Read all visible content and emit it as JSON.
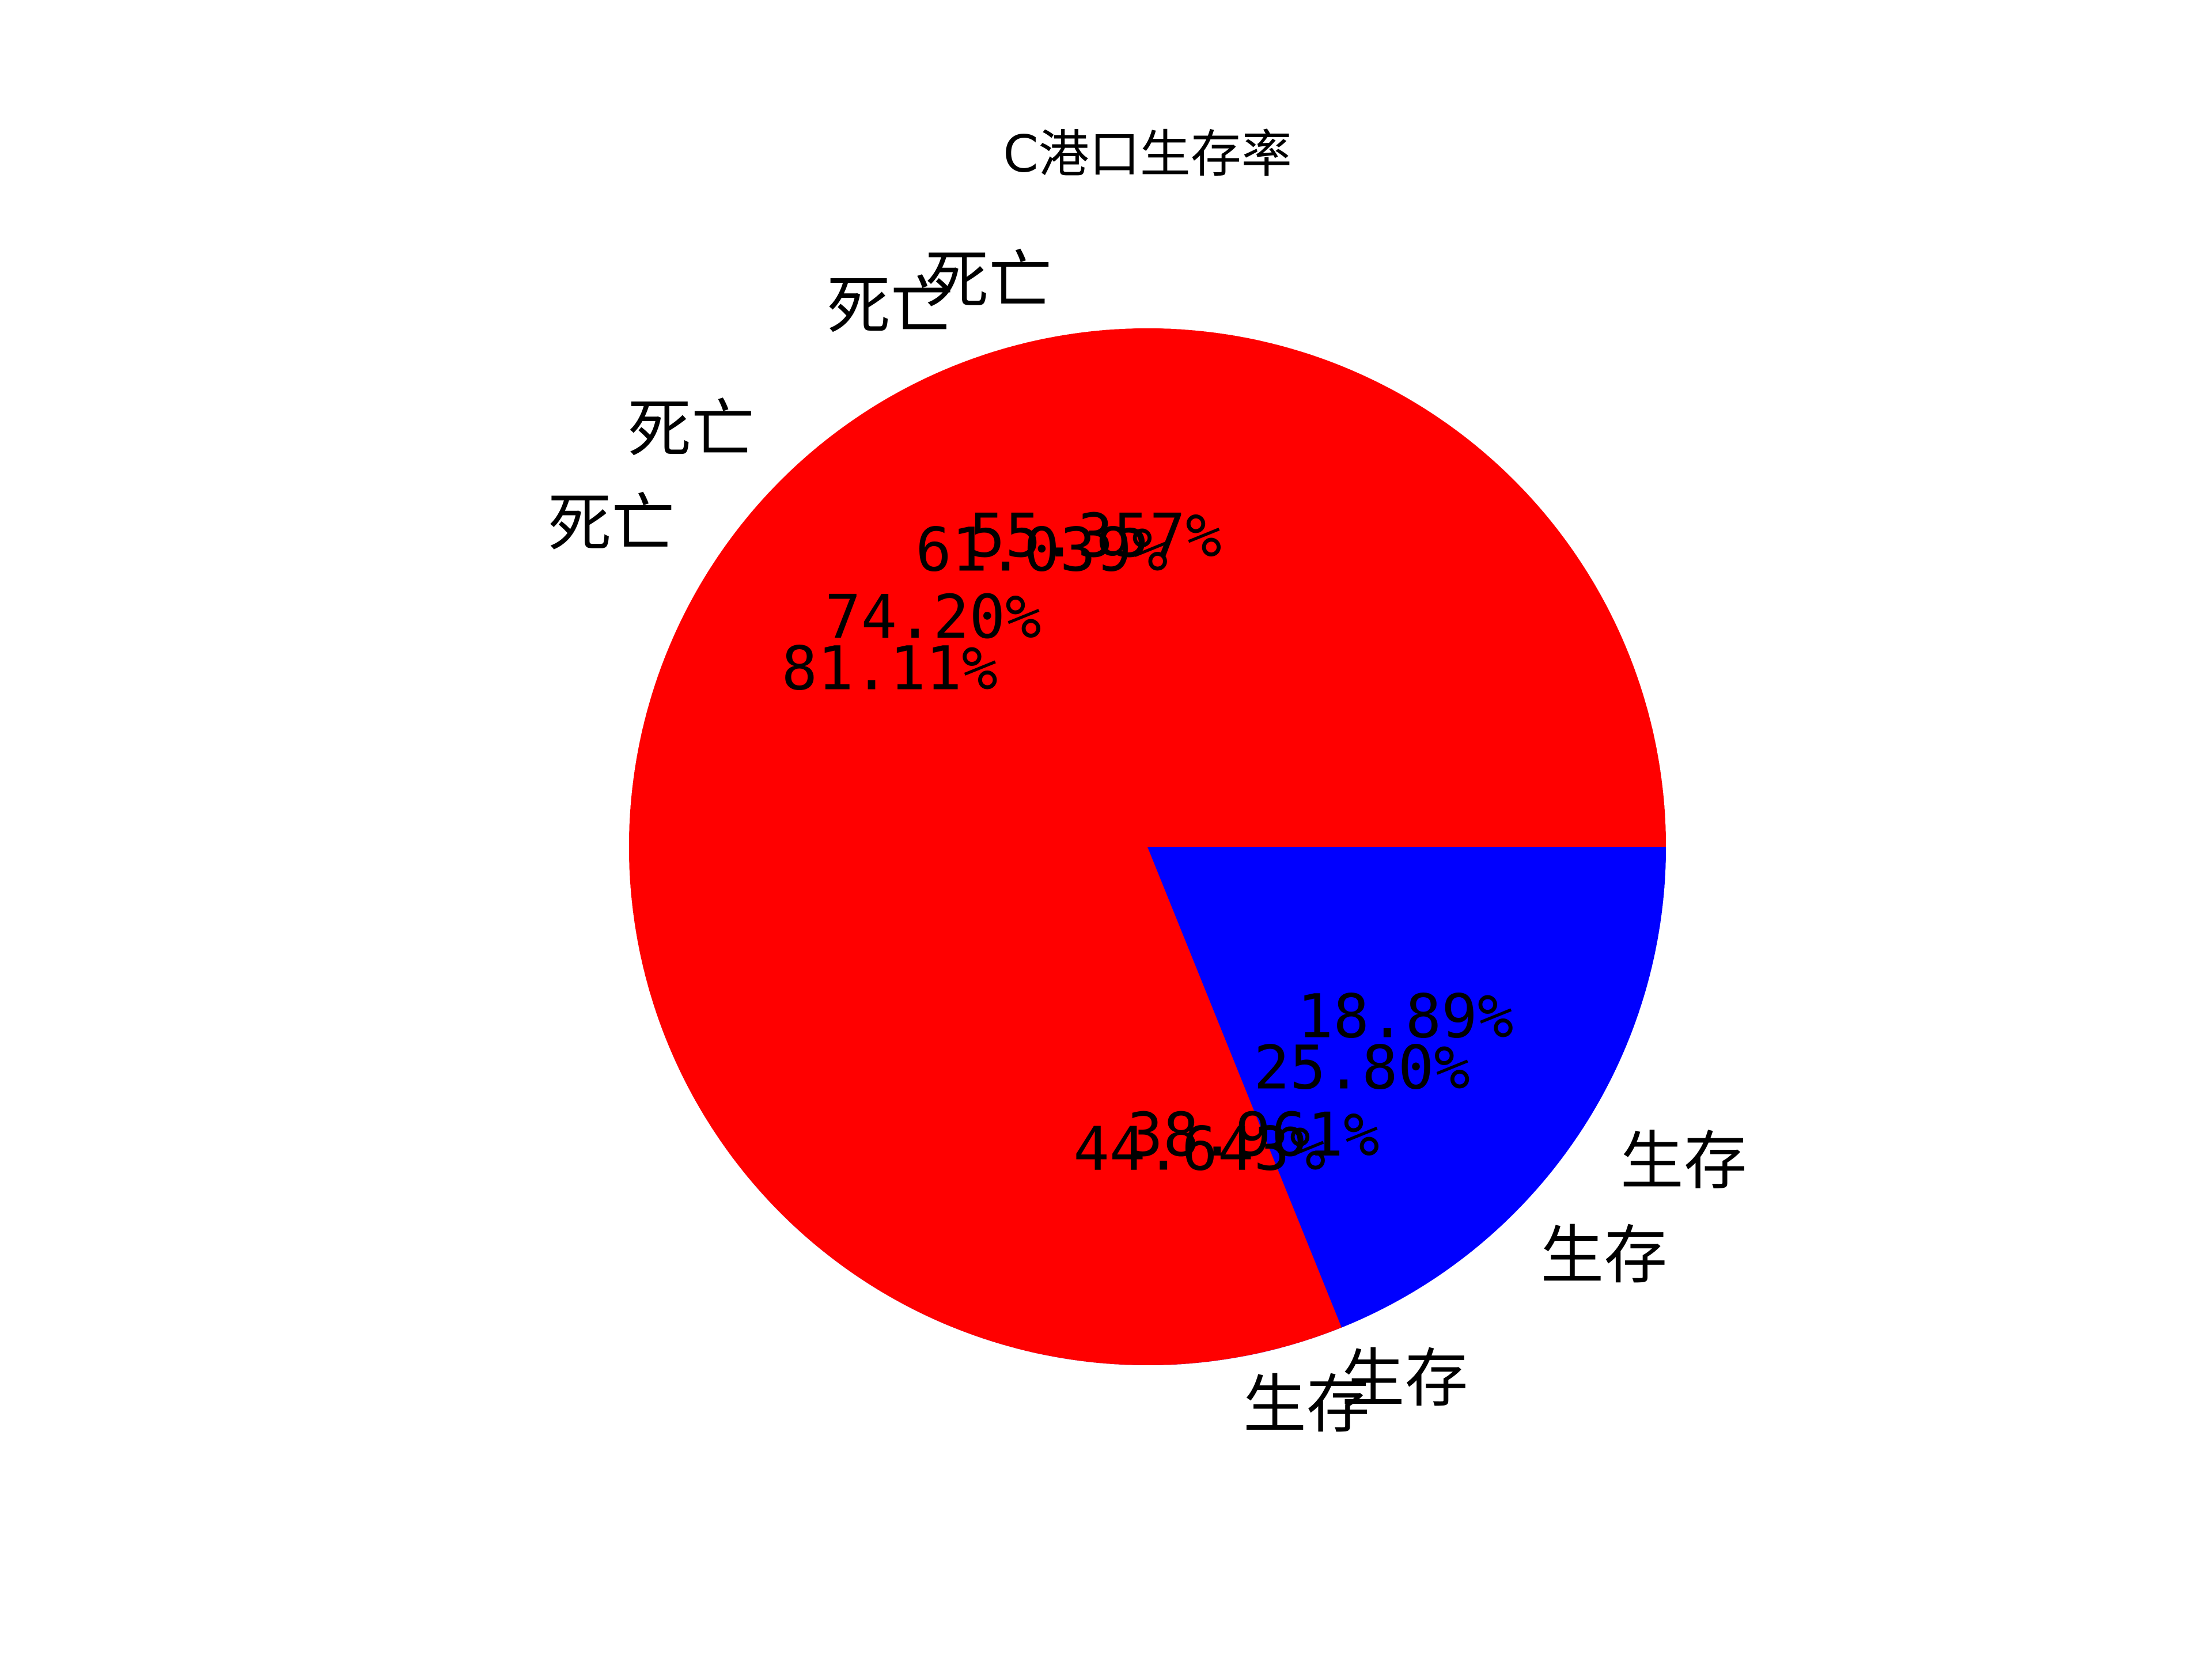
{
  "chart_data": {
    "type": "pie",
    "title": "C港口生存率",
    "colors": [
      "#ff0000",
      "#0000ff"
    ],
    "layers": [
      {
        "slices": [
          {
            "label": "死亡",
            "value": 55.357,
            "pct_text": "55.357%"
          },
          {
            "label": "生存",
            "value": 44.643,
            "pct_text": "44.643%"
          }
        ]
      },
      {
        "slices": [
          {
            "label": "死亡",
            "value": 61.039,
            "pct_text": "61.039%"
          },
          {
            "label": "生存",
            "value": 38.961,
            "pct_text": "38.961%"
          }
        ]
      },
      {
        "slices": [
          {
            "label": "死亡",
            "value": 74.2,
            "pct_text": "74.20%"
          },
          {
            "label": "生存",
            "value": 25.8,
            "pct_text": "25.80%"
          }
        ]
      },
      {
        "slices": [
          {
            "label": "死亡",
            "value": 81.11,
            "pct_text": "81.11%"
          },
          {
            "label": "生存",
            "value": 18.89,
            "pct_text": "18.89%"
          }
        ]
      }
    ]
  }
}
